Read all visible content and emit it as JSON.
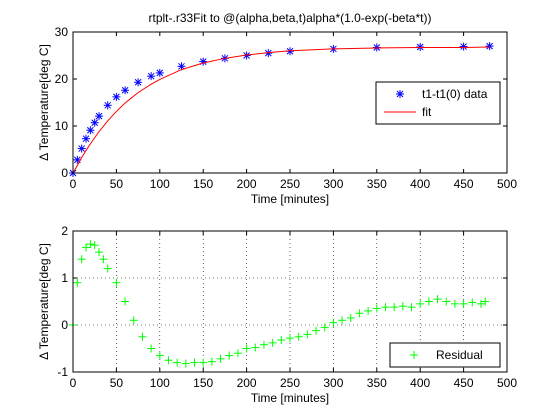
{
  "figure": {
    "background": "#ffffff"
  },
  "chart_data": [
    {
      "type": "line",
      "title": "rtplt-.r33Fit to @(alpha,beta,t)alpha*(1.0-exp(-beta*t))",
      "xlabel": "Time [minutes]",
      "ylabel": "Δ Temperature[deg C]",
      "xlim": [
        0,
        500
      ],
      "ylim": [
        0,
        30
      ],
      "xticks": [
        0,
        50,
        100,
        150,
        200,
        250,
        300,
        350,
        400,
        450,
        500
      ],
      "yticks": [
        0,
        10,
        20,
        30
      ],
      "grid": false,
      "legend_position": "right",
      "series": [
        {
          "name": "t1-t1(0) data",
          "style": "markers",
          "marker": "asterisk",
          "color": "#0000ff",
          "x": [
            0,
            5,
            10,
            15,
            20,
            25,
            30,
            40,
            50,
            60,
            75,
            90,
            100,
            125,
            150,
            175,
            200,
            225,
            250,
            300,
            350,
            400,
            450,
            480
          ],
          "y": [
            0,
            2.8,
            5.2,
            7.3,
            9.1,
            10.7,
            12.1,
            14.4,
            16.2,
            17.6,
            19.3,
            20.6,
            21.3,
            22.7,
            23.7,
            24.4,
            25.0,
            25.5,
            25.9,
            26.4,
            26.7,
            26.8,
            26.9,
            27.0
          ]
        },
        {
          "name": "fit",
          "style": "line",
          "color": "#ff0000",
          "x": [
            0,
            5,
            10,
            15,
            20,
            25,
            30,
            40,
            50,
            60,
            75,
            90,
            100,
            125,
            150,
            175,
            200,
            225,
            250,
            300,
            350,
            400,
            450,
            480
          ],
          "y": [
            0,
            1.6,
            3.3,
            4.8,
            6.2,
            7.5,
            8.8,
            11.1,
            13.1,
            14.9,
            17.1,
            18.9,
            19.9,
            22.0,
            23.4,
            24.4,
            25.1,
            25.6,
            26.0,
            26.4,
            26.6,
            26.7,
            26.7,
            26.8
          ]
        }
      ]
    },
    {
      "type": "line",
      "title": "",
      "xlabel": "Time [minutes]",
      "ylabel": "Δ Temperature[deg C]",
      "xlim": [
        0,
        500
      ],
      "ylim": [
        -1,
        2
      ],
      "xticks": [
        0,
        50,
        100,
        150,
        200,
        250,
        300,
        350,
        400,
        450,
        500
      ],
      "yticks": [
        -1,
        0,
        1,
        2
      ],
      "grid": true,
      "legend_position": "bottom-right",
      "series": [
        {
          "name": "Residual",
          "style": "markers",
          "marker": "plus",
          "color": "#00ff00",
          "x": [
            0,
            5,
            10,
            15,
            20,
            25,
            30,
            35,
            40,
            50,
            60,
            70,
            80,
            90,
            100,
            110,
            120,
            130,
            140,
            150,
            160,
            170,
            180,
            190,
            200,
            210,
            220,
            230,
            240,
            250,
            260,
            270,
            280,
            290,
            300,
            310,
            320,
            330,
            340,
            350,
            360,
            370,
            380,
            390,
            400,
            410,
            420,
            430,
            440,
            450,
            460,
            470,
            475
          ],
          "y": [
            0.0,
            0.9,
            1.4,
            1.65,
            1.72,
            1.7,
            1.55,
            1.4,
            1.2,
            0.9,
            0.5,
            0.1,
            -0.25,
            -0.5,
            -0.65,
            -0.75,
            -0.8,
            -0.82,
            -0.8,
            -0.8,
            -0.78,
            -0.72,
            -0.65,
            -0.6,
            -0.5,
            -0.48,
            -0.42,
            -0.38,
            -0.32,
            -0.28,
            -0.25,
            -0.2,
            -0.12,
            -0.05,
            0.05,
            0.1,
            0.15,
            0.25,
            0.3,
            0.35,
            0.38,
            0.38,
            0.4,
            0.38,
            0.45,
            0.5,
            0.55,
            0.5,
            0.45,
            0.45,
            0.48,
            0.45,
            0.5
          ]
        }
      ]
    }
  ]
}
